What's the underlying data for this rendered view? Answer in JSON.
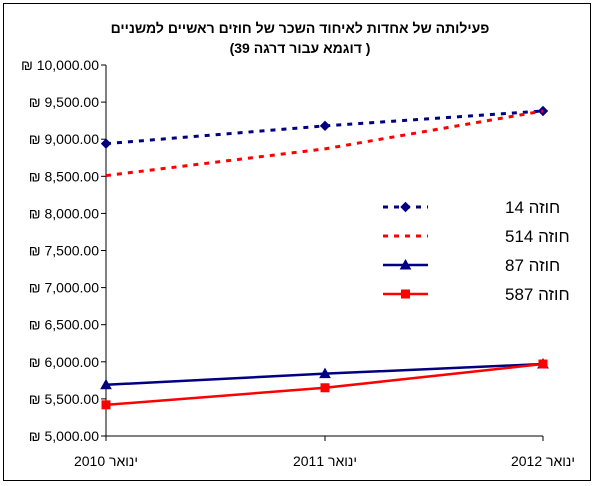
{
  "chart_data": {
    "type": "line",
    "title": "פעילותה של אחדות לאיחוד השכר של חוזים ראשיים למשניים",
    "subtitle": "( דוגמא עבור דרגה 39)",
    "xlabel": "",
    "ylabel": "",
    "categories": [
      "ינואר 2010",
      "ינואר 2011",
      "ינואר 2012"
    ],
    "y_ticks": [
      "₪ 5,000.00",
      "₪ 5,500.00",
      "₪ 6,000.00",
      "₪ 6,500.00",
      "₪ 7,000.00",
      "₪ 7,500.00",
      "₪ 8,000.00",
      "₪ 8,500.00",
      "₪ 9,000.00",
      "₪ 9,500.00",
      "₪ 10,000.00"
    ],
    "ylim": [
      5000,
      10000
    ],
    "grid": false,
    "legend_position": "right",
    "series": [
      {
        "name": "חוזה 14",
        "values": [
          8940,
          9180,
          9380
        ],
        "color": "#000080",
        "dash": true,
        "marker": "diamond"
      },
      {
        "name": "חוזה 514",
        "values": [
          8510,
          8870,
          9380
        ],
        "color": "#ff0000",
        "dash": true,
        "marker": "none"
      },
      {
        "name": "חוזה 87",
        "values": [
          5690,
          5840,
          5970
        ],
        "color": "#000080",
        "dash": false,
        "marker": "triangle"
      },
      {
        "name": "חוזה 587",
        "values": [
          5420,
          5650,
          5970
        ],
        "color": "#ff0000",
        "dash": false,
        "marker": "square"
      }
    ]
  }
}
